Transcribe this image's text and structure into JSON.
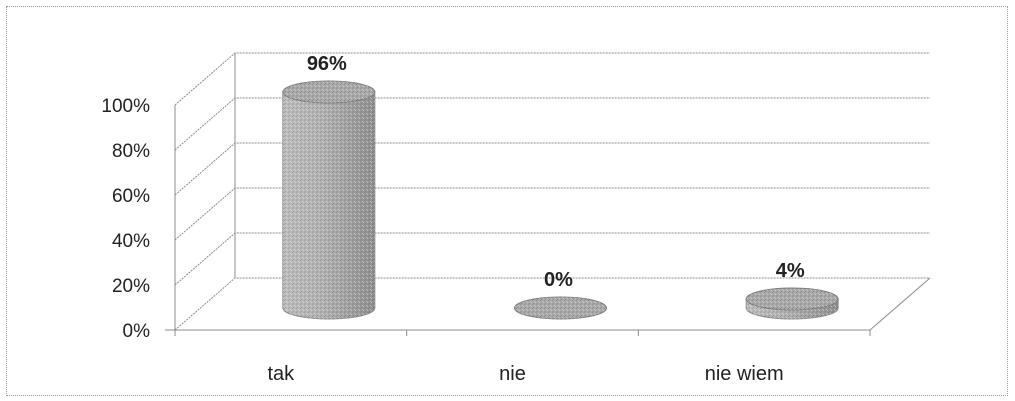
{
  "chart_data": {
    "type": "bar",
    "categories": [
      "tak",
      "nie",
      "nie wiem"
    ],
    "values": [
      96,
      0,
      4
    ],
    "data_labels": [
      "96%",
      "0%",
      "4%"
    ],
    "ylim": [
      0,
      100
    ],
    "yticks": [
      "0%",
      "20%",
      "40%",
      "60%",
      "80%",
      "100%"
    ],
    "grid": true,
    "colors": {
      "bar": "#a8a8a8",
      "bar_dark": "#7a7a7a",
      "bar_light": "#cfcfcf",
      "gridline": "#8c8c8c"
    }
  }
}
